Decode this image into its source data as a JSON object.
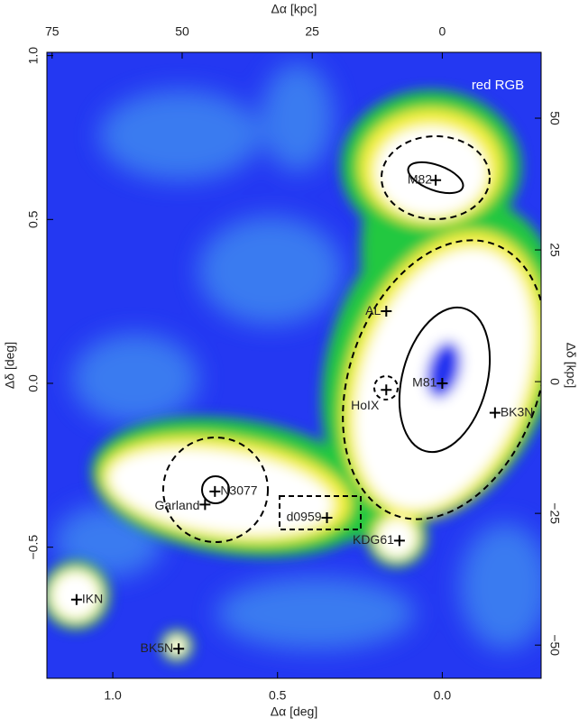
{
  "chart_data": {
    "type": "scatter",
    "annotation": "red RGB",
    "xlabel": "Δα [deg]",
    "ylabel": "Δδ [deg]",
    "x2label": "Δα [kpc]",
    "y2label": "Δδ [kpc]",
    "xlim": [
      1.2,
      -0.3
    ],
    "ylim": [
      -0.9,
      1.01
    ],
    "x2lim": [
      76,
      -19
    ],
    "y2lim": [
      -56.3,
      62.5
    ],
    "xticks": [
      {
        "value": 1,
        "label": "1.0"
      },
      0.5,
      {
        "value": 0,
        "label": "0.0"
      }
    ],
    "yticks": [
      {
        "value": 1,
        "label": "1.0"
      },
      0.5,
      {
        "value": 0,
        "label": "0.0"
      },
      {
        "value": -0.5,
        "label": "−0.5"
      }
    ],
    "x2ticks": [
      75,
      50,
      25,
      0
    ],
    "y2ticks": [
      50,
      25,
      0,
      {
        "value": -25,
        "label": "−25"
      },
      {
        "value": -50,
        "label": "−50"
      }
    ],
    "labels": [
      "M82",
      "AL",
      "M81",
      "HoIX",
      "BK3N",
      "N3077",
      "Garland",
      "d0959",
      "KDG61",
      "IKN",
      "BK5N"
    ],
    "x": [
      0.02,
      0.17,
      0,
      0.17,
      -0.16,
      0.69,
      0.72,
      0.35,
      0.13,
      1.11,
      0.8
    ],
    "y": [
      0.62,
      0.22,
      0,
      -0.02,
      -0.09,
      -0.33,
      -0.37,
      -0.41,
      -0.48,
      -0.66,
      -0.81
    ],
    "color": "#000000"
  }
}
